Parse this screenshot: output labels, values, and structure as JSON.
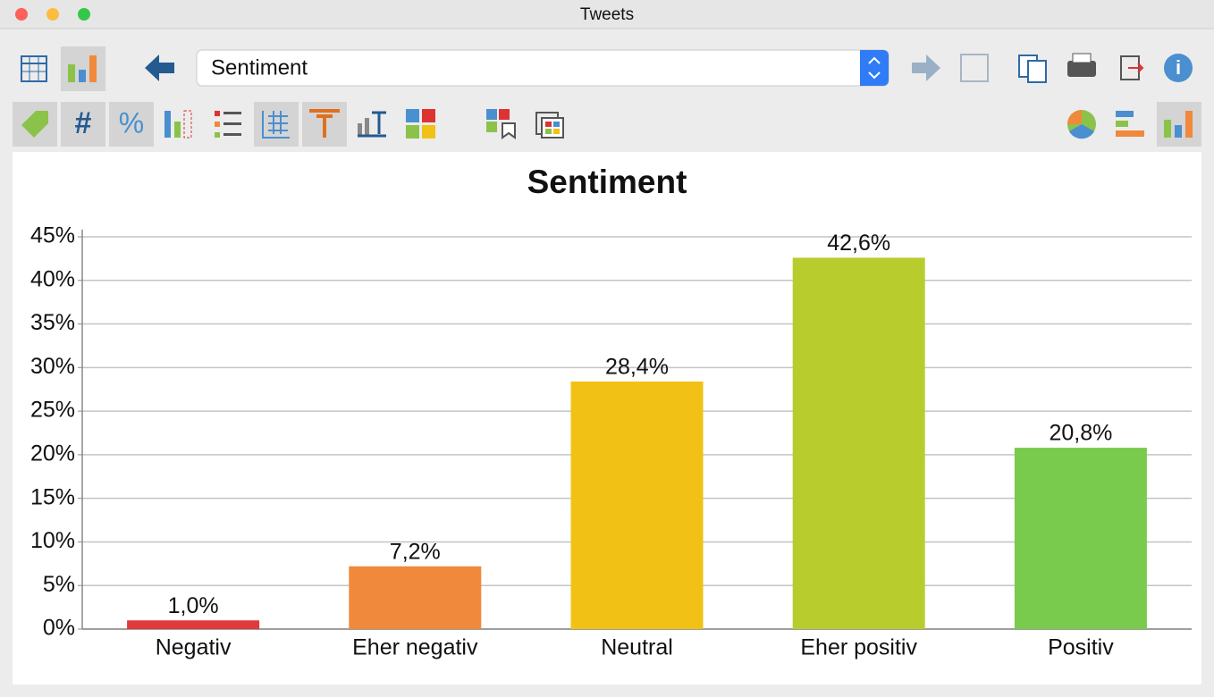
{
  "window": {
    "title": "Tweets"
  },
  "toolbar": {
    "selector": "Sentiment"
  },
  "chart_data": {
    "type": "bar",
    "title": "Sentiment",
    "categories": [
      "Negativ",
      "Eher negativ",
      "Neutral",
      "Eher positiv",
      "Positiv"
    ],
    "values": [
      1.0,
      7.2,
      28.4,
      42.6,
      20.8
    ],
    "value_labels": [
      "1,0%",
      "7,2%",
      "28,4%",
      "42,6%",
      "20,8%"
    ],
    "colors": [
      "#e03a3a",
      "#f0893c",
      "#f1c115",
      "#b8cc2e",
      "#78cb4c"
    ],
    "ylim": [
      0,
      45
    ],
    "yticks": [
      {
        "value": 0,
        "label": "0%"
      },
      {
        "value": 5,
        "label": "5%"
      },
      {
        "value": 10,
        "label": "10%"
      },
      {
        "value": 15,
        "label": "15%"
      },
      {
        "value": 20,
        "label": "20%"
      },
      {
        "value": 25,
        "label": "25%"
      },
      {
        "value": 30,
        "label": "30%"
      },
      {
        "value": 35,
        "label": "35%"
      },
      {
        "value": 40,
        "label": "40%"
      },
      {
        "value": 45,
        "label": "45%"
      }
    ],
    "grid": true
  }
}
